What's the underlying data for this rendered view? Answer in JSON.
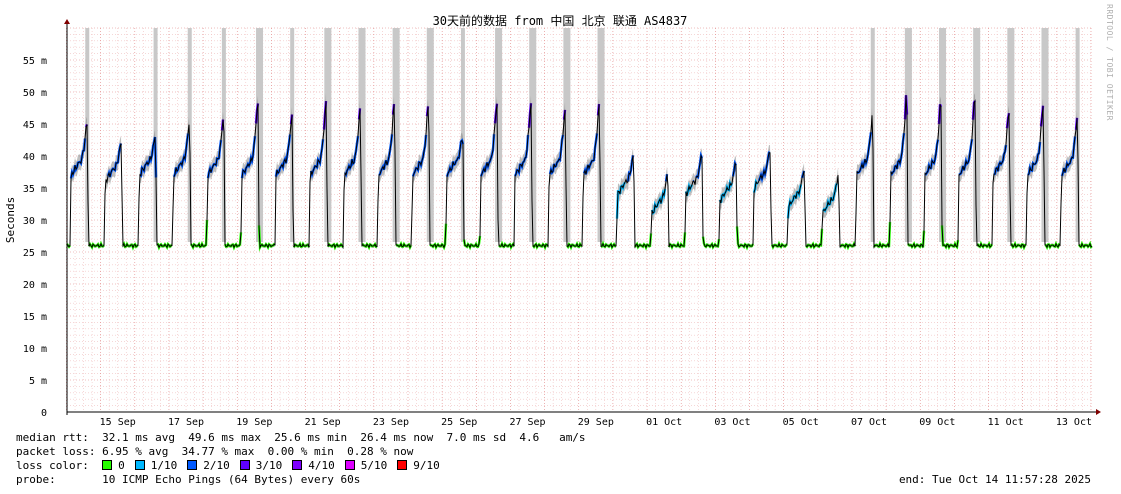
{
  "chart_data": {
    "type": "line",
    "title": "30天前的数据 from 中国 北京 联通 AS4837",
    "ylabel": "Seconds",
    "xlabel": "",
    "ylim": [
      0,
      60
    ],
    "y_ticks": [
      {
        "value": 0,
        "label": "0"
      },
      {
        "value": 5,
        "label": "5 m"
      },
      {
        "value": 10,
        "label": "10 m"
      },
      {
        "value": 15,
        "label": "15 m"
      },
      {
        "value": 20,
        "label": "20 m"
      },
      {
        "value": 25,
        "label": "25 m"
      },
      {
        "value": 30,
        "label": "30 m"
      },
      {
        "value": 35,
        "label": "35 m"
      },
      {
        "value": 40,
        "label": "40 m"
      },
      {
        "value": 45,
        "label": "45 m"
      },
      {
        "value": 50,
        "label": "50 m"
      },
      {
        "value": 55,
        "label": "55 m"
      }
    ],
    "x_ticks": [
      "15 Sep",
      "17 Sep",
      "19 Sep",
      "21 Sep",
      "23 Sep",
      "25 Sep",
      "27 Sep",
      "29 Sep",
      "01 Oct",
      "03 Oct",
      "05 Oct",
      "07 Oct",
      "09 Oct",
      "11 Oct",
      "13 Oct"
    ],
    "xlim_days": [
      "2025-09-14 00:00",
      "2025-10-14 11:57"
    ],
    "grid": true,
    "series": [
      {
        "name": "median rtt",
        "unit": "ms",
        "daily_peaks_ms": [
          45,
          42,
          43,
          45,
          46,
          48,
          46,
          48,
          47,
          48,
          48,
          43,
          48,
          48,
          47,
          48,
          40,
          37,
          40,
          39,
          41,
          38,
          37,
          46,
          49,
          48,
          49,
          47,
          48,
          46
        ],
        "baseline_ms": 26
      }
    ]
  },
  "stats": {
    "median_rtt": {
      "label": "median rtt:",
      "text": "32.1 ms avg  49.6 ms max  25.6 ms min  26.4 ms now  7.0 ms sd  4.6   am/s"
    },
    "packet_loss": {
      "label": "packet loss:",
      "text": "6.95 % avg  34.77 % max  0.00 % min  0.28 % now"
    },
    "loss_color": {
      "label": "loss color:",
      "items": [
        {
          "label": "0",
          "color": "#26ff00"
        },
        {
          "label": "1/10",
          "color": "#00b8ff"
        },
        {
          "label": "2/10",
          "color": "#0059ff"
        },
        {
          "label": "3/10",
          "color": "#5e00ff"
        },
        {
          "label": "4/10",
          "color": "#7e00ff"
        },
        {
          "label": "5/10",
          "color": "#dd00ff"
        },
        {
          "label": "9/10",
          "color": "#ff0000"
        }
      ]
    },
    "probe": {
      "label": "probe:",
      "text": "10 ICMP Echo Pings (64 Bytes) every 60s"
    },
    "end": "end: Tue Oct 14 11:57:28 2025"
  },
  "watermark": "RRDTOOL / TOBI OETIKER",
  "colors": {
    "smoke": "#c8c8c8",
    "median": "#000000",
    "grid_minor": "#f0c0c0",
    "grid_major": "#e08080",
    "axis": "#800000"
  }
}
